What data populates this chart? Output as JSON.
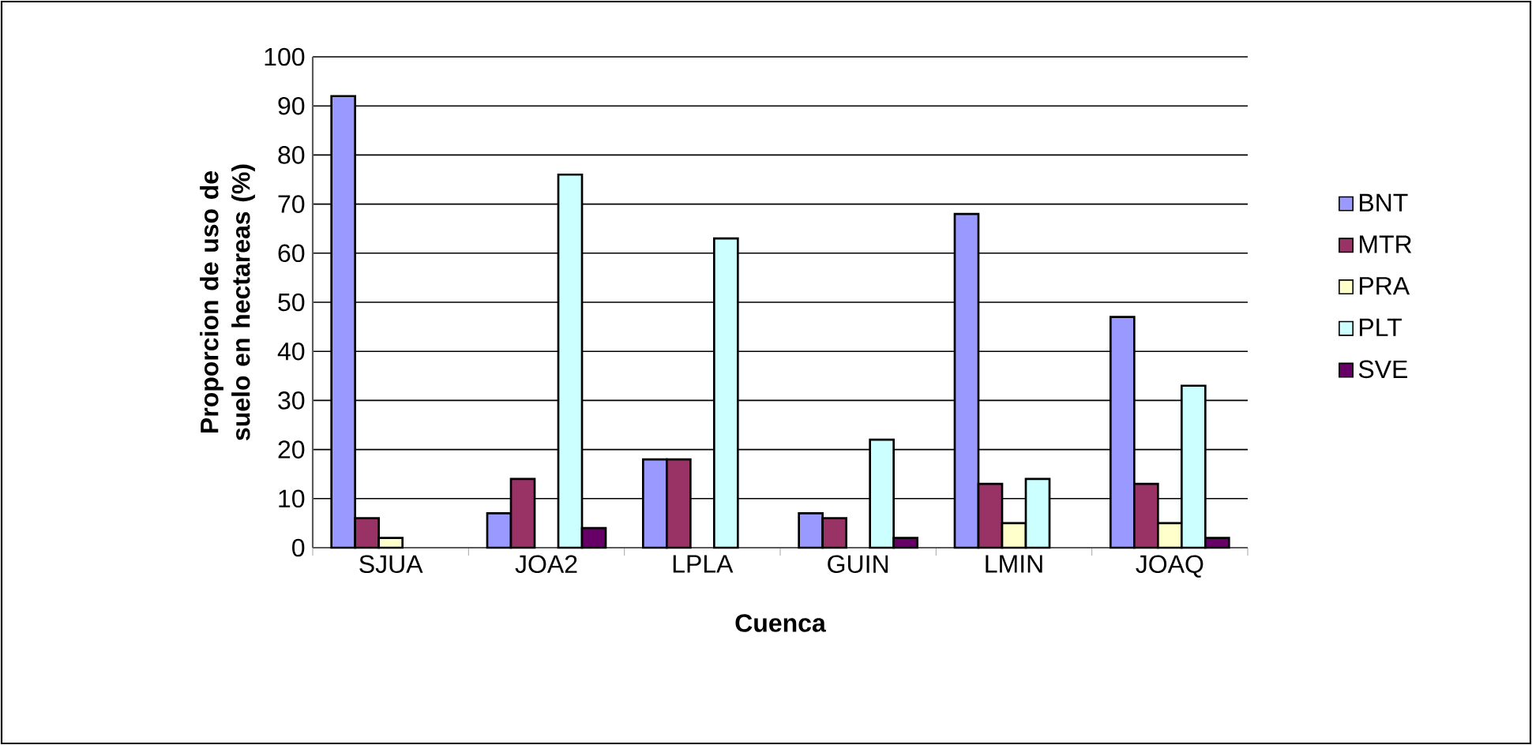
{
  "chart_data": {
    "type": "bar",
    "xlabel": "Cuenca",
    "ylabel": "Proporcion de uso de suelo en hectareas (%)",
    "categories": [
      "SJUA",
      "JOA2",
      "LPLA",
      "GUIN",
      "LMIN",
      "JOAQ"
    ],
    "series": [
      {
        "name": "BNT",
        "color": "#9999ff",
        "values": [
          92,
          7,
          18,
          7,
          68,
          47
        ]
      },
      {
        "name": "MTR",
        "color": "#993366",
        "values": [
          6,
          14,
          18,
          6,
          13,
          13
        ]
      },
      {
        "name": "PRA",
        "color": "#ffffcc",
        "values": [
          2,
          0,
          0,
          0,
          5,
          5
        ]
      },
      {
        "name": "PLT",
        "color": "#ccffff",
        "values": [
          0,
          76,
          63,
          22,
          14,
          33
        ]
      },
      {
        "name": "SVE",
        "color": "#660066",
        "values": [
          0,
          4,
          0,
          2,
          0,
          2
        ]
      }
    ],
    "ylim": [
      0,
      100
    ],
    "yticks": [
      0,
      10,
      20,
      30,
      40,
      50,
      60,
      70,
      80,
      90,
      100
    ],
    "grid": "y",
    "legend": "right"
  }
}
